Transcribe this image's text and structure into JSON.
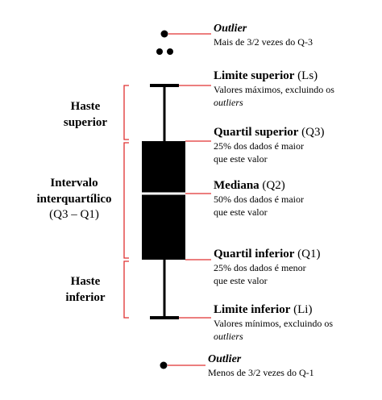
{
  "left_labels": {
    "upper_whisker": [
      "Haste",
      "superior"
    ],
    "iqr_title": [
      "Intervalo",
      "interquartílico"
    ],
    "iqr_formula": "(Q3 – Q1)",
    "lower_whisker": [
      "Haste",
      "inferior"
    ]
  },
  "right_labels": {
    "outlier_top": {
      "title": "Outlier",
      "desc": "Mais de 3/2 vezes do Q-3"
    },
    "upper_limit": {
      "title_bold": "Limite superior",
      "title_paren": "(Ls)",
      "desc_line1": "Valores máximos, excluindo os",
      "desc_line2_italic": "outliers"
    },
    "q3": {
      "title_bold": "Quartil superior",
      "title_paren": "(Q3)",
      "desc_line1": "25% dos dados é maior",
      "desc_line2": "que este valor"
    },
    "median": {
      "title_bold": "Mediana",
      "title_paren": "(Q2)",
      "desc_line1": "50% dos dados é maior",
      "desc_line2": "que este valor"
    },
    "q1": {
      "title_bold": "Quartil inferior",
      "title_paren": "(Q1)",
      "desc_line1": "25% dos dados é menor",
      "desc_line2": "que este valor"
    },
    "lower_limit": {
      "title_bold": "Limite inferior",
      "title_paren": "(Li)",
      "desc_line1": "Valores mínimos, excluindo os",
      "desc_line2_italic": "outliers"
    },
    "outlier_bottom": {
      "title": "Outlier",
      "desc": "Menos de 3/2 vezes do Q-1"
    }
  },
  "colors": {
    "box": "#000000",
    "leader_line": "#e03030",
    "bracket": "#e03030",
    "median_line": "#ffffff"
  }
}
